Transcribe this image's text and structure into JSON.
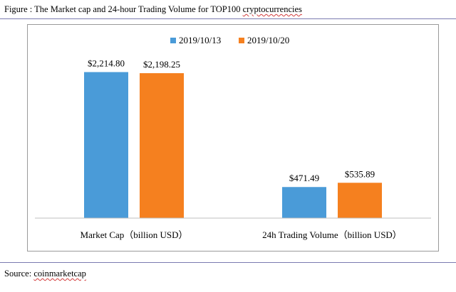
{
  "figure": {
    "caption_prefix": "Figure : The Market cap and 24-hour Trading Volume for TOP100 ",
    "caption_underlined": "cryptocurrencies",
    "source_prefix": "Source: ",
    "source_underlined": "coinmarketcap"
  },
  "chart_data": {
    "type": "bar",
    "title": "",
    "categories": [
      "Market Cap（billion USD）",
      "24h Trading Volume（billion USD）"
    ],
    "series": [
      {
        "name": "2019/10/13",
        "color": "#4a9bd8",
        "values": [
          2214.8,
          471.49
        ],
        "labels": [
          "$2,214.80",
          "$471.49"
        ]
      },
      {
        "name": "2019/10/20",
        "color": "#f5801f",
        "values": [
          2198.25,
          535.89
        ],
        "labels": [
          "$2,198.25",
          "$535.89"
        ]
      }
    ],
    "ylim": [
      0,
      2500
    ],
    "grid": false,
    "legend_position": "top-center"
  }
}
